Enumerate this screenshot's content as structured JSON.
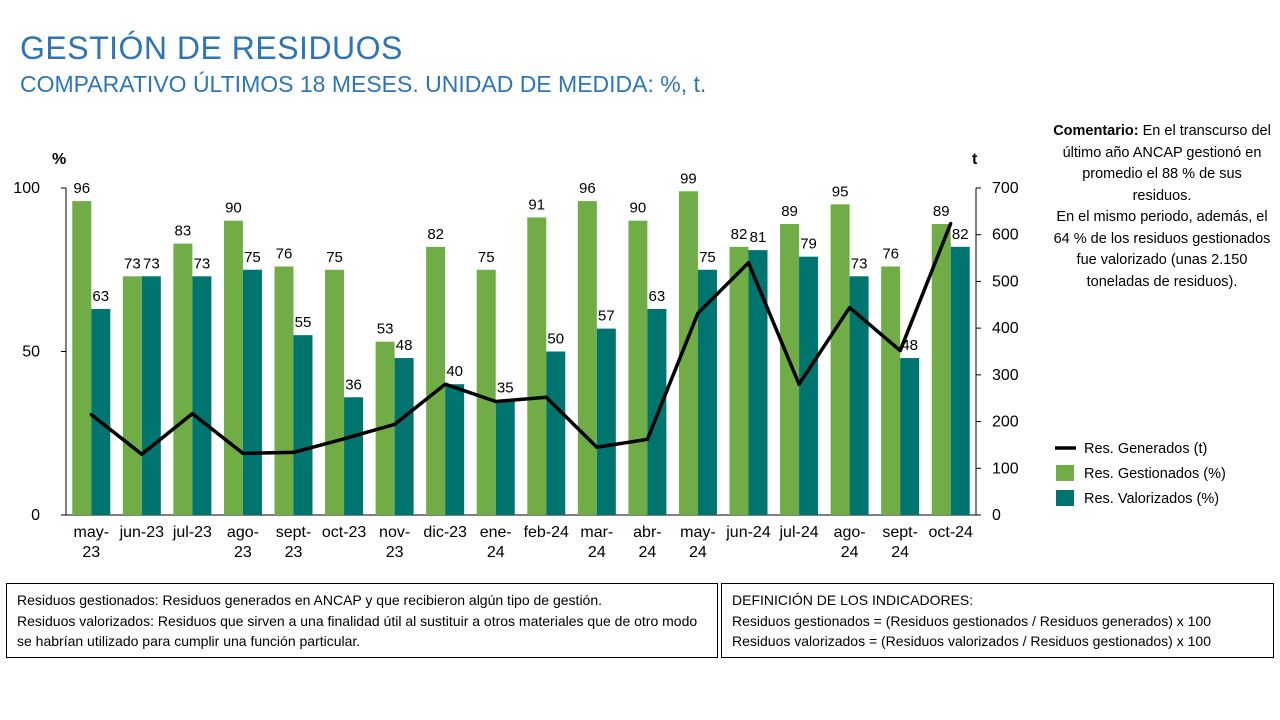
{
  "header": {
    "title": "GESTIÓN DE RESIDUOS",
    "subtitle": "COMPARATIVO ÚLTIMOS 18 MESES. UNIDAD DE MEDIDA: %, t."
  },
  "comment": {
    "label": "Comentario:",
    "text_1": "En el transcurso del último año ANCAP gestionó en promedio el 88 % de sus residuos.",
    "text_2": "En el mismo periodo, además, el 64 % de los residuos gestionados fue valorizado (unas 2.150 toneladas de residuos)."
  },
  "notes": {
    "gestionados": "Residuos gestionados: Residuos generados en ANCAP y que recibieron algún tipo de gestión.",
    "valorizados": "Residuos valorizados: Residuos que sirven a una finalidad útil al sustituir a otros materiales que de otro modo se habrían utilizado para cumplir una función particular."
  },
  "definitions": {
    "heading": "DEFINICIÓN DE LOS INDICADORES:",
    "gestionados": "Residuos gestionados = (Residuos gestionados / Residuos generados) x 100",
    "valorizados": "Residuos valorizados = (Residuos valorizados / Residuos gestionados) x 100"
  },
  "colors": {
    "gestionados": "#70ad47",
    "valorizados": "#00756f",
    "generados": "#000000",
    "title": "#2e75b6"
  },
  "chart_data": {
    "type": "bar",
    "categories": [
      [
        "may-",
        "23"
      ],
      [
        "jun-23"
      ],
      [
        "jul-23"
      ],
      [
        "ago-",
        "23"
      ],
      [
        "sept-",
        "23"
      ],
      [
        "oct-23"
      ],
      [
        "nov-",
        "23"
      ],
      [
        "dic-23"
      ],
      [
        "ene-",
        "24"
      ],
      [
        "feb-24"
      ],
      [
        "mar-",
        "24"
      ],
      [
        "abr-",
        "24"
      ],
      [
        "may-",
        "24"
      ],
      [
        "jun-24"
      ],
      [
        "jul-24"
      ],
      [
        "ago-",
        "24"
      ],
      [
        "sept-",
        "24"
      ],
      [
        "oct-24"
      ]
    ],
    "left_axis": {
      "label": "%",
      "min": 0,
      "max": 100,
      "ticks": [
        0,
        50,
        100
      ]
    },
    "right_axis": {
      "label": "t",
      "min": 0,
      "max": 700,
      "ticks": [
        0,
        100,
        200,
        300,
        400,
        500,
        600,
        700
      ]
    },
    "series": [
      {
        "name": "Res. Gestionados (%)",
        "kind": "bar",
        "axis": "left",
        "color": "#70ad47",
        "values": [
          96,
          73,
          83,
          90,
          76,
          75,
          53,
          82,
          75,
          91,
          96,
          90,
          99,
          82,
          89,
          95,
          76,
          89
        ],
        "labels": [
          "96",
          "73",
          "83",
          "90",
          "76",
          "75",
          "53",
          "82",
          "75",
          "91",
          "96",
          "90",
          "99",
          "82",
          "89",
          "95",
          "76",
          "89"
        ]
      },
      {
        "name": "Res. Valorizados (%)",
        "kind": "bar",
        "axis": "left",
        "color": "#00756f",
        "values": [
          63,
          73,
          73,
          75,
          55,
          36,
          48,
          40,
          35,
          50,
          57,
          63,
          75,
          81,
          79,
          73,
          48,
          82
        ],
        "labels": [
          "63",
          "73",
          "73",
          "75",
          "55",
          "36",
          "48",
          "40",
          "35",
          "50",
          "57",
          "63",
          "75",
          "81",
          "79",
          "73",
          "48",
          "82"
        ]
      },
      {
        "name": "Res. Generados (t)",
        "kind": "line",
        "axis": "right",
        "color": "#000000",
        "values": [
          215,
          130,
          217,
          132,
          134,
          163,
          194,
          280,
          243,
          252,
          145,
          162,
          432,
          540,
          280,
          444,
          352,
          624
        ]
      }
    ],
    "legend_position": "right",
    "grid": false
  }
}
